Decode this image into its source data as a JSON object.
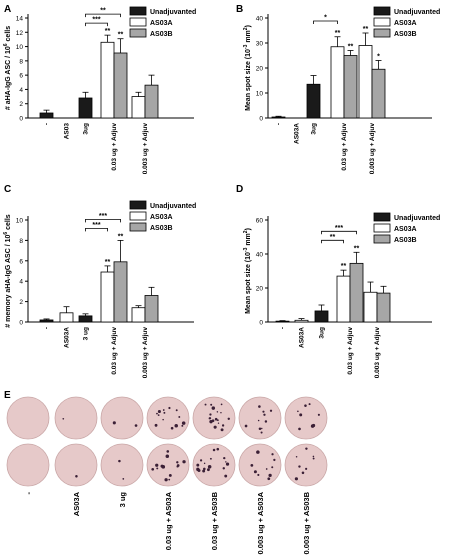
{
  "colors": {
    "unadjuvanted": "#1a1a1a",
    "as03a": "#ffffff",
    "as03b": "#a6a6a6",
    "well_bg": "#e6c9c9",
    "spot": "#3b2036"
  },
  "chart_data": [
    {
      "panel": "A",
      "type": "bar",
      "ylabel_parts": [
        "# aHA-IgG ASC / 10",
        "6",
        " cells"
      ],
      "ylim": [
        0,
        14
      ],
      "yticks": [
        "0",
        "2",
        "4",
        "6",
        "8",
        "10",
        "12",
        "14"
      ],
      "categories": [
        "-",
        "AS03",
        "3ug",
        "0.03 ug + Adjuv",
        "0.003 ug + Adjuv"
      ],
      "legend": [
        "Unadjuvanted",
        "AS03A",
        "AS03B"
      ],
      "bars": [
        {
          "cat": 0,
          "series": 0,
          "value": 0.7,
          "err": 0.4
        },
        {
          "cat": 2,
          "series": 0,
          "value": 2.8,
          "err": 0.8
        },
        {
          "cat": 3,
          "series": 1,
          "value": 10.6,
          "err": 1.0,
          "star": "**"
        },
        {
          "cat": 3,
          "series": 2,
          "value": 9.1,
          "err": 2.0,
          "star": "**"
        },
        {
          "cat": 4,
          "series": 1,
          "value": 3.0,
          "err": 0.6
        },
        {
          "cat": 4,
          "series": 2,
          "value": 4.6,
          "err": 1.4
        }
      ],
      "brackets": [
        {
          "from": [
            2,
            0
          ],
          "to": [
            3,
            1
          ],
          "label": "***",
          "level": 0
        },
        {
          "from": [
            2,
            0
          ],
          "to": [
            3,
            2
          ],
          "label": "**",
          "level": 1
        }
      ]
    },
    {
      "panel": "B",
      "type": "bar",
      "ylabel_parts": [
        "Mean spot size (10",
        "-3",
        " mm",
        "2",
        ")"
      ],
      "ylim": [
        0,
        40
      ],
      "yticks": [
        "0",
        "10",
        "20",
        "30",
        "40"
      ],
      "categories": [
        "-",
        "AS03A",
        "3ug",
        "0.03 ug + Adjuv",
        "0.003 ug + Adjuv"
      ],
      "legend": [
        "Unadjuvanted",
        "AS03A",
        "AS03B"
      ],
      "bars": [
        {
          "cat": 0,
          "series": 0,
          "value": 0.4,
          "err": 0.3
        },
        {
          "cat": 2,
          "series": 0,
          "value": 13.5,
          "err": 3.5
        },
        {
          "cat": 3,
          "series": 1,
          "value": 28.5,
          "err": 4.0,
          "star": "**"
        },
        {
          "cat": 3,
          "series": 2,
          "value": 25.0,
          "err": 2.0,
          "star": "**"
        },
        {
          "cat": 4,
          "series": 1,
          "value": 29.0,
          "err": 5.0,
          "star": "**"
        },
        {
          "cat": 4,
          "series": 2,
          "value": 19.5,
          "err": 3.5,
          "star": "*"
        }
      ],
      "brackets": [
        {
          "from": [
            2,
            0
          ],
          "to": [
            3,
            1
          ],
          "label": "*",
          "level": 0
        }
      ]
    },
    {
      "panel": "C",
      "type": "bar",
      "ylabel_parts": [
        "# memory aHA-IgG ASC / 10",
        "6",
        " cells"
      ],
      "ylim": [
        0,
        10
      ],
      "yticks": [
        "0",
        "2",
        "4",
        "6",
        "8",
        "10"
      ],
      "categories": [
        "-",
        "AS03A",
        "3 ug",
        "0.03 ug + Adjuv",
        "0.003 ug + Adjuv"
      ],
      "legend": [
        "Unadjuvanted",
        "AS03A",
        "AS03B"
      ],
      "bars": [
        {
          "cat": 0,
          "series": 0,
          "value": 0.2,
          "err": 0.1
        },
        {
          "cat": 1,
          "series": 1,
          "value": 0.9,
          "err": 0.6
        },
        {
          "cat": 2,
          "series": 0,
          "value": 0.6,
          "err": 0.2
        },
        {
          "cat": 3,
          "series": 1,
          "value": 4.9,
          "err": 0.6,
          "star": "**"
        },
        {
          "cat": 3,
          "series": 2,
          "value": 5.9,
          "err": 2.1,
          "star": "**"
        },
        {
          "cat": 4,
          "series": 1,
          "value": 1.4,
          "err": 0.2
        },
        {
          "cat": 4,
          "series": 2,
          "value": 2.6,
          "err": 0.8
        }
      ],
      "brackets": [
        {
          "from": [
            2,
            0
          ],
          "to": [
            3,
            1
          ],
          "label": "***",
          "level": 0
        },
        {
          "from": [
            2,
            0
          ],
          "to": [
            3,
            2
          ],
          "label": "***",
          "level": 1
        }
      ]
    },
    {
      "panel": "D",
      "type": "bar",
      "ylabel_parts": [
        "Mean spot size (10",
        "-3",
        " mm",
        "2",
        ")"
      ],
      "ylim": [
        0,
        60
      ],
      "yticks": [
        "0",
        "20",
        "40",
        "60"
      ],
      "categories": [
        "-",
        "AS03A",
        "3ug",
        "0.03 ug + Adjuv",
        "0.003 ug + Adjuv"
      ],
      "legend": [
        "Unadjuvanted",
        "AS03A",
        "AS03B"
      ],
      "bars": [
        {
          "cat": 0,
          "series": 0,
          "value": 0.5,
          "err": 0.3
        },
        {
          "cat": 1,
          "series": 1,
          "value": 1.0,
          "err": 1.0
        },
        {
          "cat": 2,
          "series": 0,
          "value": 6.5,
          "err": 3.5
        },
        {
          "cat": 3,
          "series": 1,
          "value": 27.0,
          "err": 3.5,
          "star": "**"
        },
        {
          "cat": 3,
          "series": 2,
          "value": 34.5,
          "err": 6.5,
          "star": "**"
        },
        {
          "cat": 4,
          "series": 1,
          "value": 17.5,
          "err": 6.0
        },
        {
          "cat": 4,
          "series": 2,
          "value": 17.0,
          "err": 4.0
        }
      ],
      "brackets": [
        {
          "from": [
            2,
            0
          ],
          "to": [
            3,
            1
          ],
          "label": "**",
          "level": 0
        },
        {
          "from": [
            2,
            0
          ],
          "to": [
            3,
            2
          ],
          "label": "***",
          "level": 1
        }
      ]
    }
  ],
  "panel_e": {
    "label": "E",
    "columns": [
      "-",
      "AS03A",
      "3 ug",
      "0.03 ug + AS03A",
      "0.03 ug + AS03B",
      "0.003 ug + AS03A",
      "0.003 ug + AS03B"
    ],
    "spot_density": [
      0,
      1,
      2,
      14,
      18,
      10,
      8
    ]
  }
}
